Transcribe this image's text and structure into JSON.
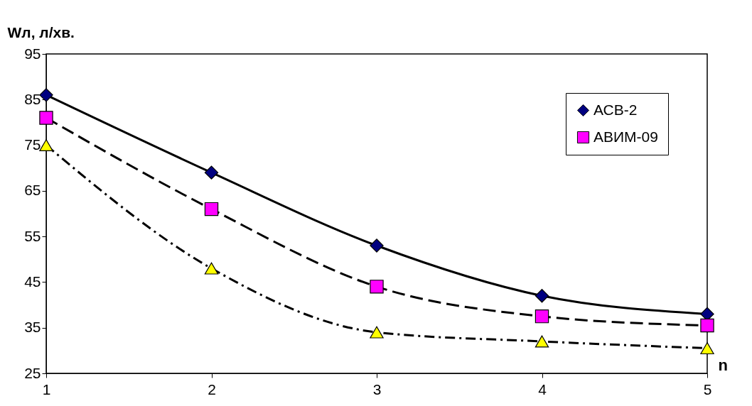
{
  "chart_data": {
    "type": "line",
    "xlabel": "n",
    "ylabel": "Wл, л/хв.",
    "x": [
      1,
      2,
      3,
      4,
      5
    ],
    "xlim": [
      1,
      5
    ],
    "xticks": [
      1,
      2,
      3,
      4,
      5
    ],
    "ylim": [
      25,
      95
    ],
    "yticks": [
      25,
      35,
      45,
      55,
      65,
      75,
      85,
      95
    ],
    "grid": false,
    "legend": "top right",
    "series": [
      {
        "name": "АСВ-2",
        "color": "#000080",
        "marker": "diamond",
        "line_style": "solid",
        "values": [
          86,
          69,
          53,
          42,
          38
        ]
      },
      {
        "name": "АВИМ-09",
        "color": "#ff00ff",
        "marker": "square",
        "line_style": "dashed",
        "values": [
          81,
          61,
          44,
          37.5,
          35.5
        ]
      },
      {
        "color": "#ffff00",
        "marker": "triangle",
        "line_style": "dotted",
        "values": [
          75,
          48,
          34,
          32,
          30.5
        ]
      }
    ]
  }
}
